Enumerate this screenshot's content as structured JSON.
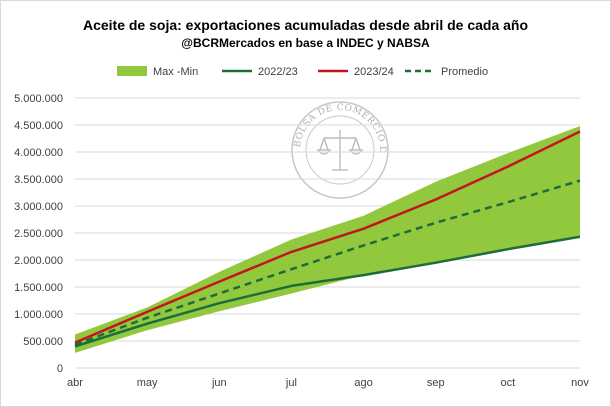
{
  "chart_data": {
    "type": "area",
    "title": "Aceite de soja: exportaciones acumuladas desde abril de cada año",
    "subtitle": "@BCRMercados en base a INDEC y NABSA",
    "categories": [
      "abr",
      "may",
      "jun",
      "jul",
      "ago",
      "sep",
      "oct",
      "nov"
    ],
    "y_ticks": [
      "0",
      "500.000",
      "1.000.000",
      "1.500.000",
      "2.000.000",
      "2.500.000",
      "3.000.000",
      "3.500.000",
      "4.000.000",
      "4.500.000",
      "5.000.000"
    ],
    "ylim": [
      0,
      5000000
    ],
    "grid": true,
    "legend_position": "top",
    "band": {
      "name": "Max -Min",
      "color": "#92c83e",
      "max": [
        620000,
        1120000,
        1780000,
        2380000,
        2820000,
        3450000,
        3980000,
        4480000
      ],
      "min": [
        280000,
        700000,
        1050000,
        1380000,
        1720000,
        1950000,
        2200000,
        2420000
      ]
    },
    "series": [
      {
        "name": "2022/23",
        "color": "#1e6b3c",
        "dash": false,
        "values": [
          400000,
          820000,
          1200000,
          1520000,
          1720000,
          1950000,
          2200000,
          2430000
        ]
      },
      {
        "name": "2023/24",
        "color": "#c0161c",
        "dash": false,
        "values": [
          470000,
          1040000,
          1600000,
          2150000,
          2580000,
          3120000,
          3730000,
          4380000
        ]
      },
      {
        "name": "Promedio",
        "color": "#1e6b3c",
        "dash": true,
        "values": [
          430000,
          930000,
          1380000,
          1830000,
          2270000,
          2690000,
          3070000,
          3470000
        ]
      }
    ]
  },
  "watermark": {
    "text": "BOLSA DE COMERCIO DE ROSARIO",
    "icon": "scales-of-justice-seal"
  }
}
